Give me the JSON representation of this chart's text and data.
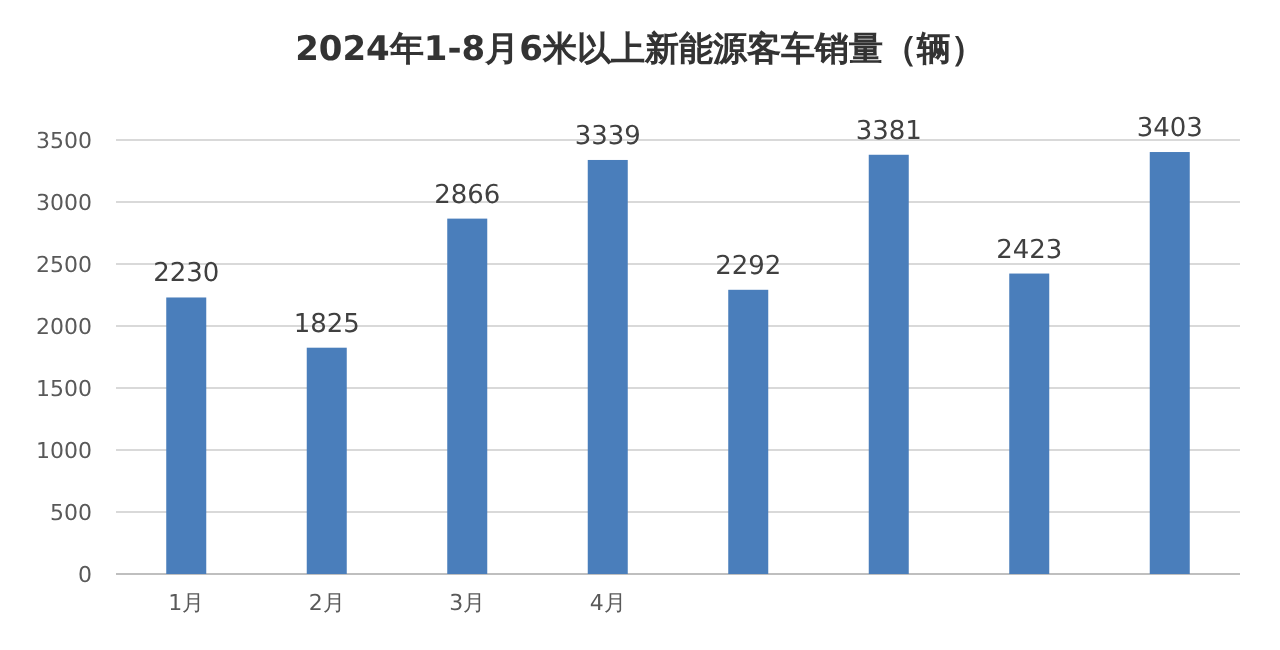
{
  "chart_data": {
    "type": "bar",
    "title": "2024年1-8月6米以上新能源客车销量（辆）",
    "categories": [
      "1月",
      "2月",
      "3月",
      "4月",
      null,
      null,
      null,
      null
    ],
    "values": [
      2230,
      1825,
      2866,
      3339,
      2292,
      3381,
      2423,
      3403
    ],
    "color": "#4a7ebb",
    "ylim": [
      0,
      3500
    ],
    "yticks": [
      0,
      500,
      1000,
      1500,
      2000,
      2500,
      3000,
      3500
    ],
    "grid": "y",
    "data_labels": true
  }
}
